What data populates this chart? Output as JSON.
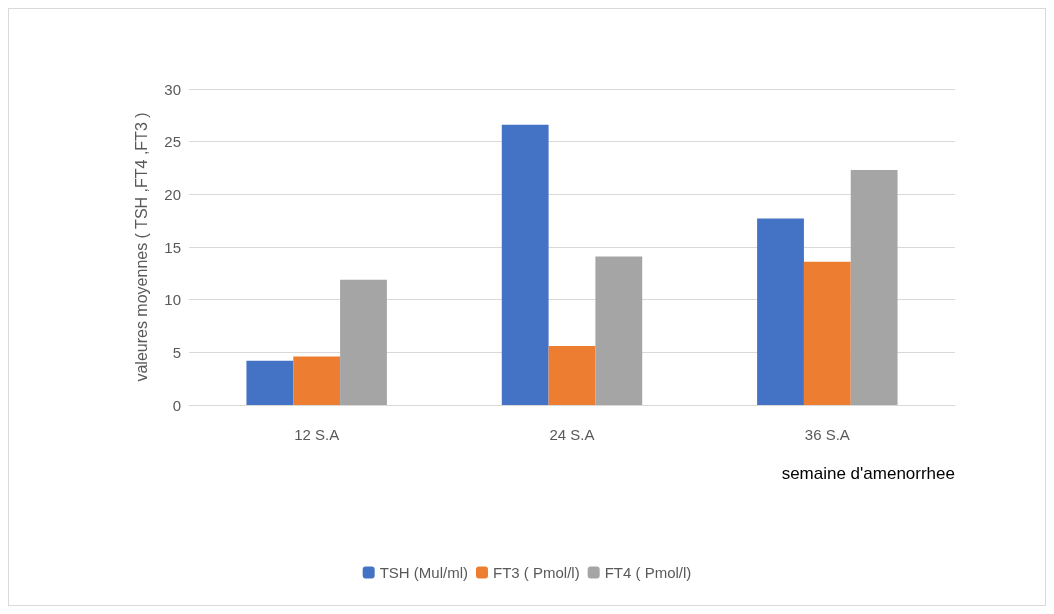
{
  "chart_data": {
    "type": "bar",
    "xlabel": "semaine d'amenorrhee",
    "ylabel": "valeures moyennes ( TSH ,FT4 ,FT3 )",
    "categories": [
      "12 S.A",
      "24 S.A",
      "36 S.A"
    ],
    "series": [
      {
        "name": "TSH (Mul/ml)",
        "color": "#4472c4",
        "values": [
          4.2,
          26.6,
          17.7
        ]
      },
      {
        "name": "FT3 ( Pmol/l)",
        "color": "#ed7d31",
        "values": [
          4.6,
          5.6,
          13.6
        ]
      },
      {
        "name": "FT4 ( Pmol/l)",
        "color": "#a5a5a5",
        "values": [
          11.9,
          14.1,
          22.3
        ]
      }
    ],
    "ylim": [
      0,
      30
    ],
    "yticks": [
      0,
      5,
      10,
      15,
      20,
      25,
      30
    ],
    "grid": "y",
    "legend": "bottom"
  }
}
